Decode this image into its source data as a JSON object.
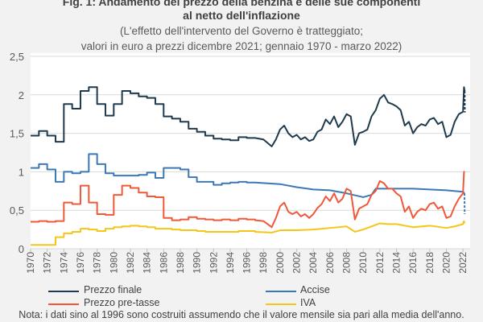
{
  "chart_data": {
    "type": "line",
    "title": "Fig. 1: Andamento del prezzo della benzina e delle sue componenti",
    "title_line2": "al netto dell'inflazione",
    "subtitle": "(L'effetto dell'intervento del Governo è tratteggiato;",
    "subtitle_line2": "valori in euro a prezzi dicembre 2021; gennaio 1970 - marzo 2022)",
    "ylim": [
      0,
      2.5
    ],
    "yticks": [
      "0",
      "0,5",
      "1",
      "1,5",
      "2",
      "2,5"
    ],
    "ytick_values": [
      0,
      0.5,
      1,
      1.5,
      2,
      2.5
    ],
    "xlim": [
      1970,
      2022.3
    ],
    "xticks": [
      "1970",
      "1972",
      "1974",
      "1976",
      "1978",
      "1980",
      "1982",
      "1984",
      "1986",
      "1988",
      "1990",
      "1992",
      "1994",
      "1996",
      "1998",
      "2000",
      "2002",
      "2004",
      "2006",
      "2008",
      "2010",
      "2012",
      "2014",
      "2016",
      "2018",
      "2020",
      "2022"
    ],
    "grid": true,
    "legend_position": "bottom",
    "step_until": 1997,
    "series": [
      {
        "name": "Prezzo finale",
        "color": "#1f3a4d",
        "yearly": [
          1.47,
          1.53,
          1.47,
          1.39,
          1.88,
          1.82,
          2.05,
          2.1,
          1.88,
          1.73,
          1.88,
          2.05,
          2.02,
          1.98,
          1.96,
          1.88,
          1.72,
          1.69,
          1.65,
          1.56,
          1.52,
          1.47,
          1.43,
          1.42,
          1.41,
          1.45,
          1.44
        ],
        "points": [
          [
            1997,
            1.44
          ],
          [
            1998,
            1.42
          ],
          [
            1999,
            1.33
          ],
          [
            1999.5,
            1.42
          ],
          [
            2000,
            1.55
          ],
          [
            2000.5,
            1.6
          ],
          [
            2001,
            1.5
          ],
          [
            2001.5,
            1.45
          ],
          [
            2002,
            1.48
          ],
          [
            2002.5,
            1.42
          ],
          [
            2003,
            1.45
          ],
          [
            2003.5,
            1.4
          ],
          [
            2004,
            1.42
          ],
          [
            2004.5,
            1.52
          ],
          [
            2005,
            1.55
          ],
          [
            2005.5,
            1.68
          ],
          [
            2006,
            1.62
          ],
          [
            2006.5,
            1.72
          ],
          [
            2007,
            1.58
          ],
          [
            2007.5,
            1.65
          ],
          [
            2008,
            1.75
          ],
          [
            2008.5,
            1.72
          ],
          [
            2009,
            1.35
          ],
          [
            2009.5,
            1.5
          ],
          [
            2010,
            1.52
          ],
          [
            2010.5,
            1.55
          ],
          [
            2011,
            1.72
          ],
          [
            2011.5,
            1.8
          ],
          [
            2012,
            1.95
          ],
          [
            2012.5,
            2.0
          ],
          [
            2013,
            1.9
          ],
          [
            2013.5,
            1.88
          ],
          [
            2014,
            1.85
          ],
          [
            2014.5,
            1.8
          ],
          [
            2015,
            1.6
          ],
          [
            2015.5,
            1.65
          ],
          [
            2016,
            1.5
          ],
          [
            2016.5,
            1.58
          ],
          [
            2017,
            1.62
          ],
          [
            2017.5,
            1.6
          ],
          [
            2018,
            1.68
          ],
          [
            2018.5,
            1.7
          ],
          [
            2019,
            1.62
          ],
          [
            2019.5,
            1.65
          ],
          [
            2020,
            1.45
          ],
          [
            2020.5,
            1.48
          ],
          [
            2021,
            1.65
          ],
          [
            2021.5,
            1.75
          ],
          [
            2022,
            1.78
          ],
          [
            2022.12,
            2.1
          ],
          [
            2022.2,
            2.05
          ]
        ],
        "dashed": [
          [
            2022.2,
            2.05
          ],
          [
            2022.22,
            1.77
          ]
        ]
      },
      {
        "name": "Accise",
        "color": "#3c78b5",
        "yearly": [
          1.05,
          1.1,
          1.03,
          0.87,
          1.0,
          0.98,
          1.0,
          1.23,
          1.1,
          0.98,
          0.95,
          0.95,
          0.95,
          0.96,
          0.99,
          0.92,
          1.05,
          1.05,
          1.03,
          0.93,
          0.87,
          0.87,
          0.83,
          0.85,
          0.86,
          0.87,
          0.86
        ],
        "points": [
          [
            1997,
            0.86
          ],
          [
            2000,
            0.84
          ],
          [
            2002,
            0.8
          ],
          [
            2004,
            0.77
          ],
          [
            2006,
            0.76
          ],
          [
            2008,
            0.72
          ],
          [
            2010,
            0.67
          ],
          [
            2011,
            0.7
          ],
          [
            2011.5,
            0.78
          ],
          [
            2012,
            0.78
          ],
          [
            2014,
            0.78
          ],
          [
            2016,
            0.78
          ],
          [
            2018,
            0.77
          ],
          [
            2020,
            0.76
          ],
          [
            2022,
            0.74
          ],
          [
            2022.17,
            0.72
          ]
        ],
        "dashed": [
          [
            2022.17,
            0.72
          ],
          [
            2022.2,
            0.45
          ]
        ]
      },
      {
        "name": "Prezzo pre-tasse",
        "color": "#f0583a",
        "yearly": [
          0.35,
          0.36,
          0.35,
          0.36,
          0.6,
          0.58,
          0.82,
          0.6,
          0.45,
          0.44,
          0.7,
          0.82,
          0.79,
          0.73,
          0.68,
          0.67,
          0.4,
          0.37,
          0.38,
          0.41,
          0.39,
          0.38,
          0.37,
          0.38,
          0.37,
          0.39,
          0.38
        ],
        "points": [
          [
            1997,
            0.37
          ],
          [
            1998,
            0.36
          ],
          [
            1999,
            0.28
          ],
          [
            1999.5,
            0.4
          ],
          [
            2000,
            0.55
          ],
          [
            2000.5,
            0.6
          ],
          [
            2001,
            0.48
          ],
          [
            2001.5,
            0.45
          ],
          [
            2002,
            0.48
          ],
          [
            2002.5,
            0.42
          ],
          [
            2003,
            0.45
          ],
          [
            2003.5,
            0.4
          ],
          [
            2004,
            0.45
          ],
          [
            2004.5,
            0.53
          ],
          [
            2005,
            0.58
          ],
          [
            2005.5,
            0.68
          ],
          [
            2006,
            0.62
          ],
          [
            2006.5,
            0.72
          ],
          [
            2007,
            0.6
          ],
          [
            2007.5,
            0.65
          ],
          [
            2008,
            0.78
          ],
          [
            2008.5,
            0.75
          ],
          [
            2009,
            0.38
          ],
          [
            2009.5,
            0.52
          ],
          [
            2010,
            0.55
          ],
          [
            2010.5,
            0.58
          ],
          [
            2011,
            0.7
          ],
          [
            2011.5,
            0.75
          ],
          [
            2012,
            0.88
          ],
          [
            2012.5,
            0.85
          ],
          [
            2013,
            0.78
          ],
          [
            2013.5,
            0.78
          ],
          [
            2014,
            0.72
          ],
          [
            2014.5,
            0.68
          ],
          [
            2015,
            0.48
          ],
          [
            2015.5,
            0.55
          ],
          [
            2016,
            0.4
          ],
          [
            2016.5,
            0.48
          ],
          [
            2017,
            0.52
          ],
          [
            2017.5,
            0.5
          ],
          [
            2018,
            0.58
          ],
          [
            2018.5,
            0.6
          ],
          [
            2019,
            0.52
          ],
          [
            2019.5,
            0.55
          ],
          [
            2020,
            0.4
          ],
          [
            2020.5,
            0.42
          ],
          [
            2021,
            0.55
          ],
          [
            2021.5,
            0.65
          ],
          [
            2022,
            0.72
          ],
          [
            2022.12,
            1.0
          ],
          [
            2022.2,
            0.99
          ]
        ],
        "dashed": []
      },
      {
        "name": "IVA",
        "color": "#f5c518",
        "yearly": [
          0.05,
          0.05,
          0.05,
          0.15,
          0.2,
          0.22,
          0.26,
          0.25,
          0.23,
          0.26,
          0.28,
          0.29,
          0.3,
          0.29,
          0.28,
          0.26,
          0.26,
          0.25,
          0.24,
          0.24,
          0.23,
          0.22,
          0.22,
          0.22,
          0.22,
          0.23,
          0.23
        ],
        "points": [
          [
            1997,
            0.22
          ],
          [
            1999,
            0.21
          ],
          [
            2000,
            0.24
          ],
          [
            2002,
            0.24
          ],
          [
            2004,
            0.25
          ],
          [
            2006,
            0.27
          ],
          [
            2008,
            0.29
          ],
          [
            2009,
            0.22
          ],
          [
            2010,
            0.25
          ],
          [
            2012,
            0.33
          ],
          [
            2013,
            0.32
          ],
          [
            2014,
            0.32
          ],
          [
            2015,
            0.3
          ],
          [
            2016,
            0.28
          ],
          [
            2018,
            0.3
          ],
          [
            2020,
            0.27
          ],
          [
            2021,
            0.29
          ],
          [
            2022,
            0.32
          ],
          [
            2022.1,
            0.36
          ],
          [
            2022.2,
            0.33
          ]
        ],
        "dashed": []
      }
    ]
  },
  "note": "Nota: i dati sino al 1996 sono costruiti assumendo che il valore mensile sia pari alla media dell'anno."
}
